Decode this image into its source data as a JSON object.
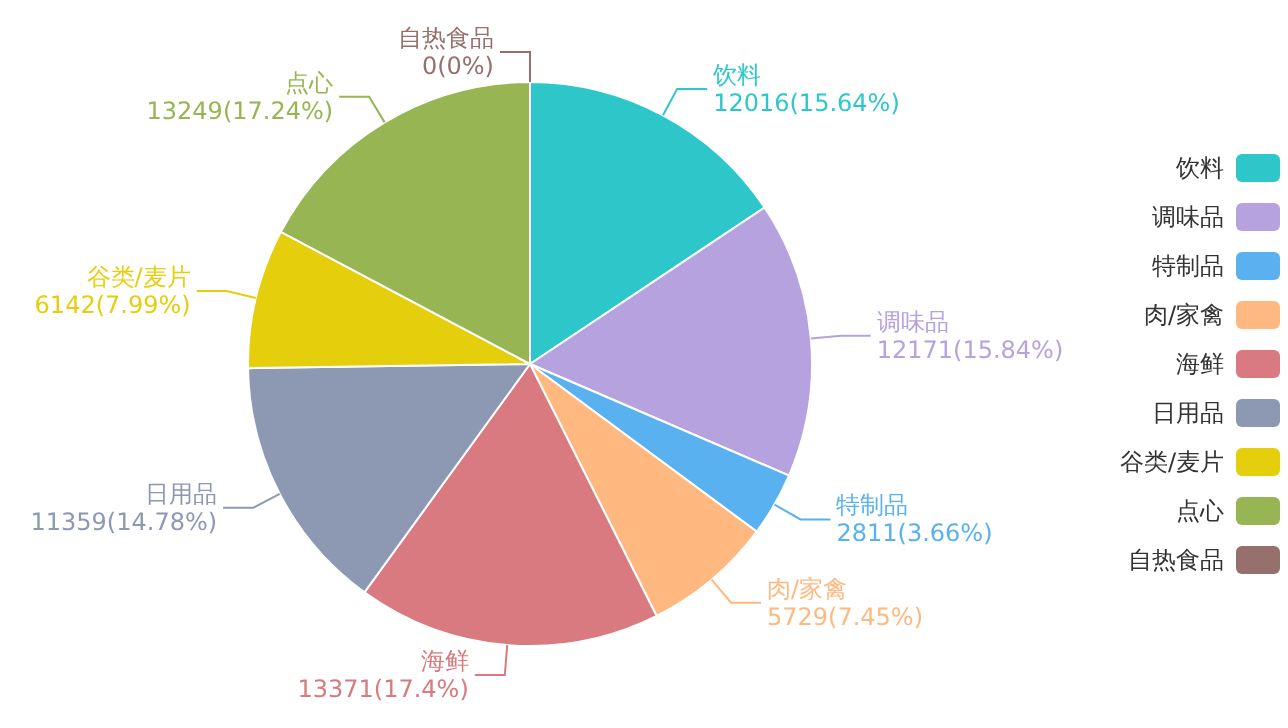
{
  "chart_data": {
    "type": "pie",
    "categories": [
      "饮料",
      "调味品",
      "特制品",
      "肉/家禽",
      "海鲜",
      "日用品",
      "谷类/麦片",
      "点心",
      "自热食品"
    ],
    "values": [
      12016,
      12171,
      2811,
      5729,
      13371,
      11359,
      6142,
      13249,
      0
    ],
    "value_labels": [
      "12016(15.64%)",
      "12171(15.84%)",
      "2811(3.66%)",
      "5729(7.45%)",
      "13371(17.4%)",
      "11359(14.78%)",
      "6142(7.99%)",
      "13249(17.24%)",
      "0(0%)"
    ],
    "colors": [
      "#2ec7c9",
      "#b6a2de",
      "#5ab1ef",
      "#ffb980",
      "#d87a80",
      "#8d98b3",
      "#e5cf0d",
      "#97b552",
      "#95706d"
    ],
    "legend": "right"
  }
}
